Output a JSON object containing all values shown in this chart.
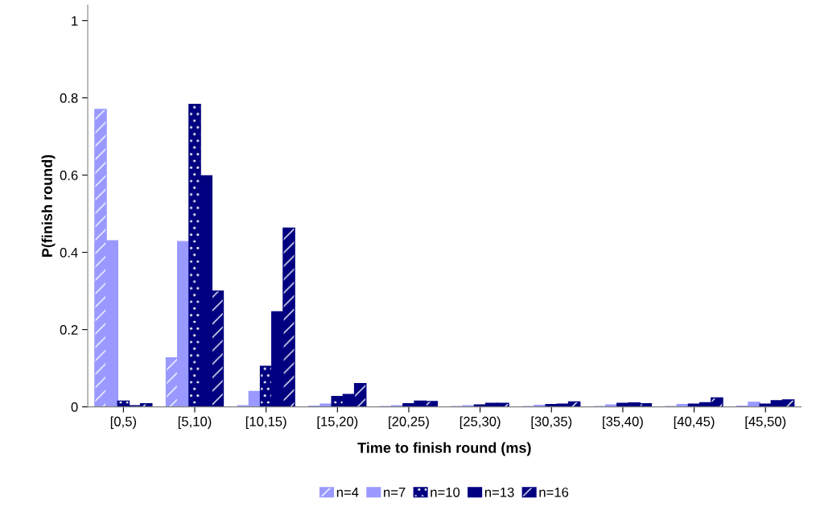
{
  "chart_data": {
    "type": "bar",
    "xlabel": "Time to finish round (ms)",
    "ylabel": "P(finish round)",
    "categories": [
      "[0,5)",
      "[5,10)",
      "[10,15)",
      "[15,20)",
      "[20,25)",
      "[25,30)",
      "[30,35)",
      "[35,40)",
      "[40,45)",
      "[45,50)"
    ],
    "series": [
      {
        "name": "n=4",
        "color": "#9999ff",
        "values": [
          0.77,
          0.127,
          0.003,
          0.002,
          0.001,
          0.001,
          0.001,
          0.001,
          0.001,
          0.002
        ]
      },
      {
        "name": "n=7",
        "color": "#9999ff",
        "values": [
          0.43,
          0.428,
          0.04,
          0.007,
          0.003,
          0.003,
          0.004,
          0.005,
          0.006,
          0.012
        ]
      },
      {
        "name": "n=10",
        "color": "#000080",
        "values": [
          0.015,
          0.783,
          0.105,
          0.027,
          0.008,
          0.005,
          0.006,
          0.009,
          0.007,
          0.007
        ]
      },
      {
        "name": "n=13",
        "color": "#000080",
        "values": [
          0.003,
          0.598,
          0.246,
          0.032,
          0.015,
          0.009,
          0.007,
          0.01,
          0.011,
          0.016
        ]
      },
      {
        "name": "n=16",
        "color": "#000080",
        "values": [
          0.008,
          0.3,
          0.463,
          0.06,
          0.014,
          0.009,
          0.013,
          0.008,
          0.023,
          0.018
        ]
      }
    ],
    "ylim": [
      0,
      1.04
    ],
    "yticks": [
      0,
      0.2,
      0.4,
      0.6,
      0.8,
      1
    ],
    "grid": false,
    "legend": "bottom"
  }
}
